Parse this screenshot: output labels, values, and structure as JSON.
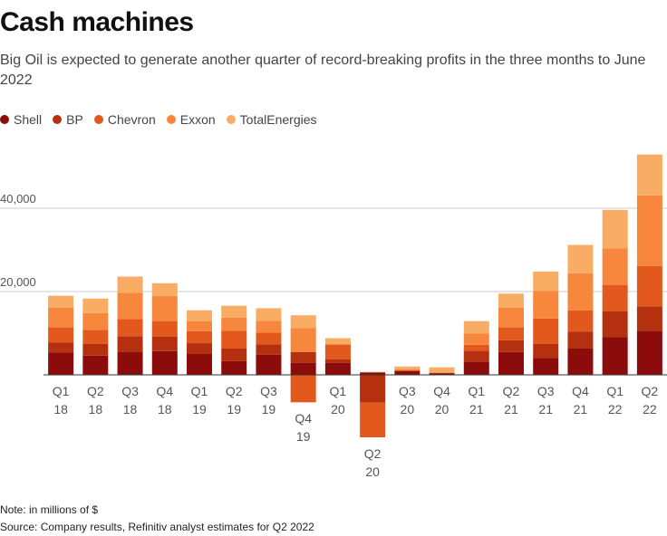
{
  "chart_data": {
    "type": "stacked-bar",
    "title": "Cash machines",
    "subtitle": "Big Oil is expected to generate another quarter of record-breaking profits in the three months to June 2022",
    "notes": [
      "Note: in millions of $",
      "Source: Company results, Refinitiv analyst estimates for Q2 2022"
    ],
    "categories": [
      "Q1 18",
      "Q2 18",
      "Q3 18",
      "Q4 18",
      "Q1 19",
      "Q2 19",
      "Q3 19",
      "Q4 19",
      "Q1 20",
      "Q2 20",
      "Q3 20",
      "Q4 20",
      "Q1 21",
      "Q2 21",
      "Q3 21",
      "Q4 21",
      "Q1 22",
      "Q2 22"
    ],
    "series": [
      {
        "name": "Shell",
        "color": "#8c0b0b",
        "values": [
          5400,
          4600,
          5600,
          5700,
          5000,
          3300,
          4800,
          2900,
          2900,
          600,
          900,
          400,
          3200,
          5500,
          4100,
          6300,
          9100,
          10600
        ]
      },
      {
        "name": "BP",
        "color": "#b4300f",
        "values": [
          2400,
          2800,
          3700,
          3500,
          2600,
          3000,
          2500,
          2600,
          800,
          -6700,
          100,
          100,
          2600,
          2800,
          3300,
          4100,
          6200,
          5800
        ]
      },
      {
        "name": "Chevron",
        "color": "#e2581d",
        "values": [
          3600,
          3400,
          4100,
          3700,
          2900,
          4300,
          2800,
          -6600,
          3600,
          -8300,
          200,
          0,
          1400,
          3100,
          6100,
          5100,
          6300,
          9700
        ]
      },
      {
        "name": "Exxon",
        "color": "#f7873c",
        "values": [
          4700,
          4000,
          6300,
          6000,
          2400,
          3100,
          2900,
          5700,
          0,
          0,
          0,
          0,
          2700,
          4700,
          6700,
          8900,
          8800,
          17000
        ]
      },
      {
        "name": "TotalEnergies",
        "color": "#f9ad64",
        "values": [
          2900,
          3500,
          3900,
          3100,
          2600,
          2900,
          3000,
          3100,
          1500,
          100,
          800,
          1300,
          3000,
          3400,
          4600,
          6800,
          9200,
          9800
        ]
      }
    ],
    "ylim": [
      -16000,
      55000
    ],
    "yticks": [
      {
        "value": 20000,
        "label": "20,000"
      },
      {
        "value": 40000,
        "label": "40,000"
      }
    ],
    "grid": true
  }
}
